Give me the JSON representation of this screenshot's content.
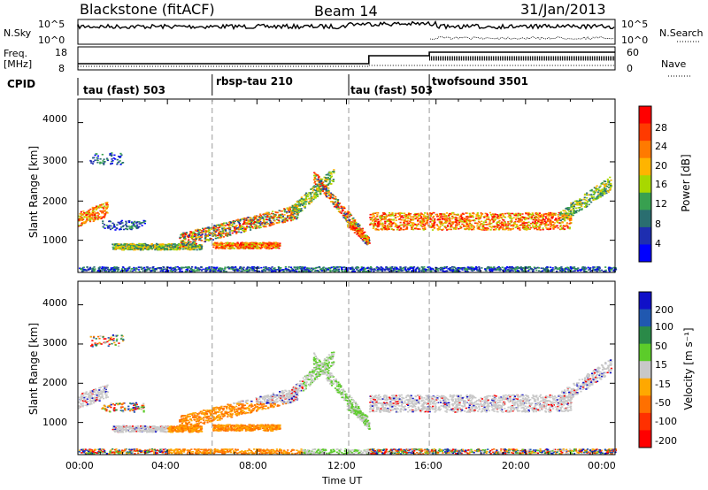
{
  "header": {
    "radar": "Blackstone (fitACF)",
    "beam": "Beam 14",
    "date": "31/Jan/2013"
  },
  "top_panels": {
    "nsky_label": "N.Sky",
    "nsearch_label": "N.Search",
    "left_ticks": [
      "10^5",
      "10^0"
    ],
    "right_ticks": [
      "10^5",
      "10^0"
    ],
    "freq_label": "Freq.",
    "freq_unit": "[MHz]",
    "freq_ticks": [
      "18",
      "8"
    ],
    "nave_label": "Nave",
    "nave_ticks": [
      "60",
      "0"
    ],
    "cpid_label": "CPID"
  },
  "cpid_segments": [
    {
      "start_hour": 0,
      "label": "tau (fast) 503"
    },
    {
      "start_hour": 6,
      "label": "rbsp-tau 210"
    },
    {
      "start_hour": 12.1,
      "label": "tau (fast) 503"
    },
    {
      "start_hour": 15.7,
      "label": "twofsound 3501"
    }
  ],
  "power_colorbar": {
    "title": "Power [dB]",
    "ticks": [
      "28",
      "24",
      "20",
      "16",
      "12",
      "8",
      "4"
    ],
    "colors": [
      "#ff0000",
      "#ff3a00",
      "#ff7a00",
      "#ffb400",
      "#a8d800",
      "#38a050",
      "#2a6e70",
      "#1e2eb0",
      "#0000ff"
    ]
  },
  "velocity_colorbar": {
    "title": "Velocity [m s⁻¹]",
    "ticks": [
      "200",
      "100",
      "50",
      "15",
      "-15",
      "-50",
      "-100",
      "-200"
    ],
    "colors": [
      "#1010c8",
      "#2058b0",
      "#2a8a48",
      "#5ccc2a",
      "#c8c8c8",
      "#ffa800",
      "#ff7000",
      "#ff3000",
      "#ff0000"
    ]
  },
  "chart_data": [
    {
      "type": "heatmap",
      "name": "Power",
      "xlabel": "",
      "ylabel": "Slant Range [km]",
      "xlim": [
        0,
        24
      ],
      "ylim": [
        180,
        4600
      ],
      "yticks": [
        "4000",
        "3000",
        "2000",
        "1000"
      ],
      "xticks": [
        "00:00",
        "04:00",
        "08:00",
        "12:00",
        "16:00",
        "20:00",
        "00:00"
      ]
    },
    {
      "type": "heatmap",
      "name": "Velocity",
      "xlabel": "Time UT",
      "ylabel": "Slant Range [km]",
      "xlim": [
        0,
        24
      ],
      "ylim": [
        180,
        4600
      ],
      "yticks": [
        "4000",
        "3000",
        "2000",
        "1000"
      ],
      "xticks": [
        "00:00",
        "04:00",
        "08:00",
        "12:00",
        "16:00",
        "20:00",
        "00:00"
      ]
    }
  ]
}
